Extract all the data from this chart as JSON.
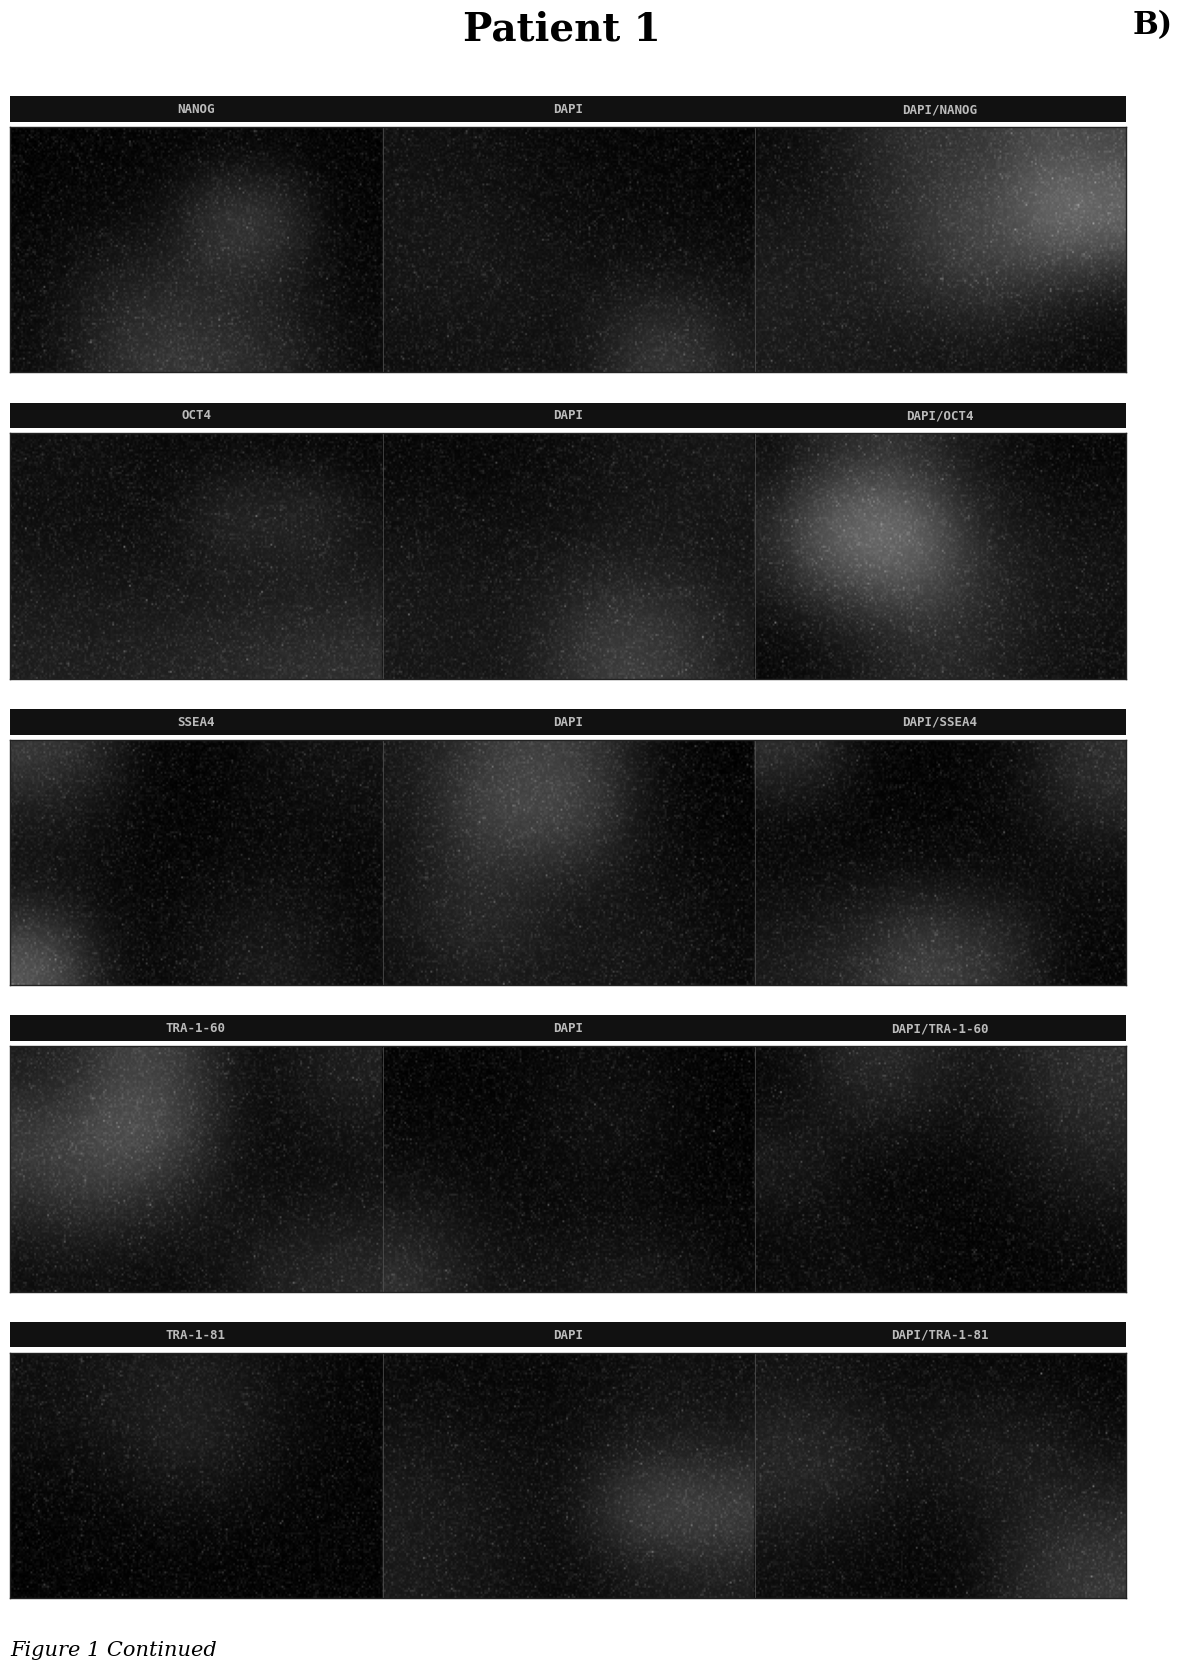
{
  "title": "Patient 1",
  "panel_label": "B)",
  "figure_caption": "Figure 1 Continued",
  "rows": [
    {
      "labels": [
        "NANOG",
        "DAPI",
        "DAPI/NANOG"
      ]
    },
    {
      "labels": [
        "OCT4",
        "DAPI",
        "DAPI/OCT4"
      ]
    },
    {
      "labels": [
        "SSEA4",
        "DAPI",
        "DAPI/SSEA4"
      ]
    },
    {
      "labels": [
        "TRA-1-60",
        "DAPI",
        "DAPI/TRA-1-60"
      ]
    },
    {
      "labels": [
        "TRA-1-81",
        "DAPI",
        "DAPI/TRA-1-81"
      ]
    }
  ],
  "label_bar_color": "#111111",
  "label_text_color": "#bbbbbb",
  "label_fontsize": 9,
  "title_fontsize": 28,
  "panel_label_fontsize": 22,
  "caption_fontsize": 15,
  "bg_color": "#ffffff",
  "image_seed": 42
}
